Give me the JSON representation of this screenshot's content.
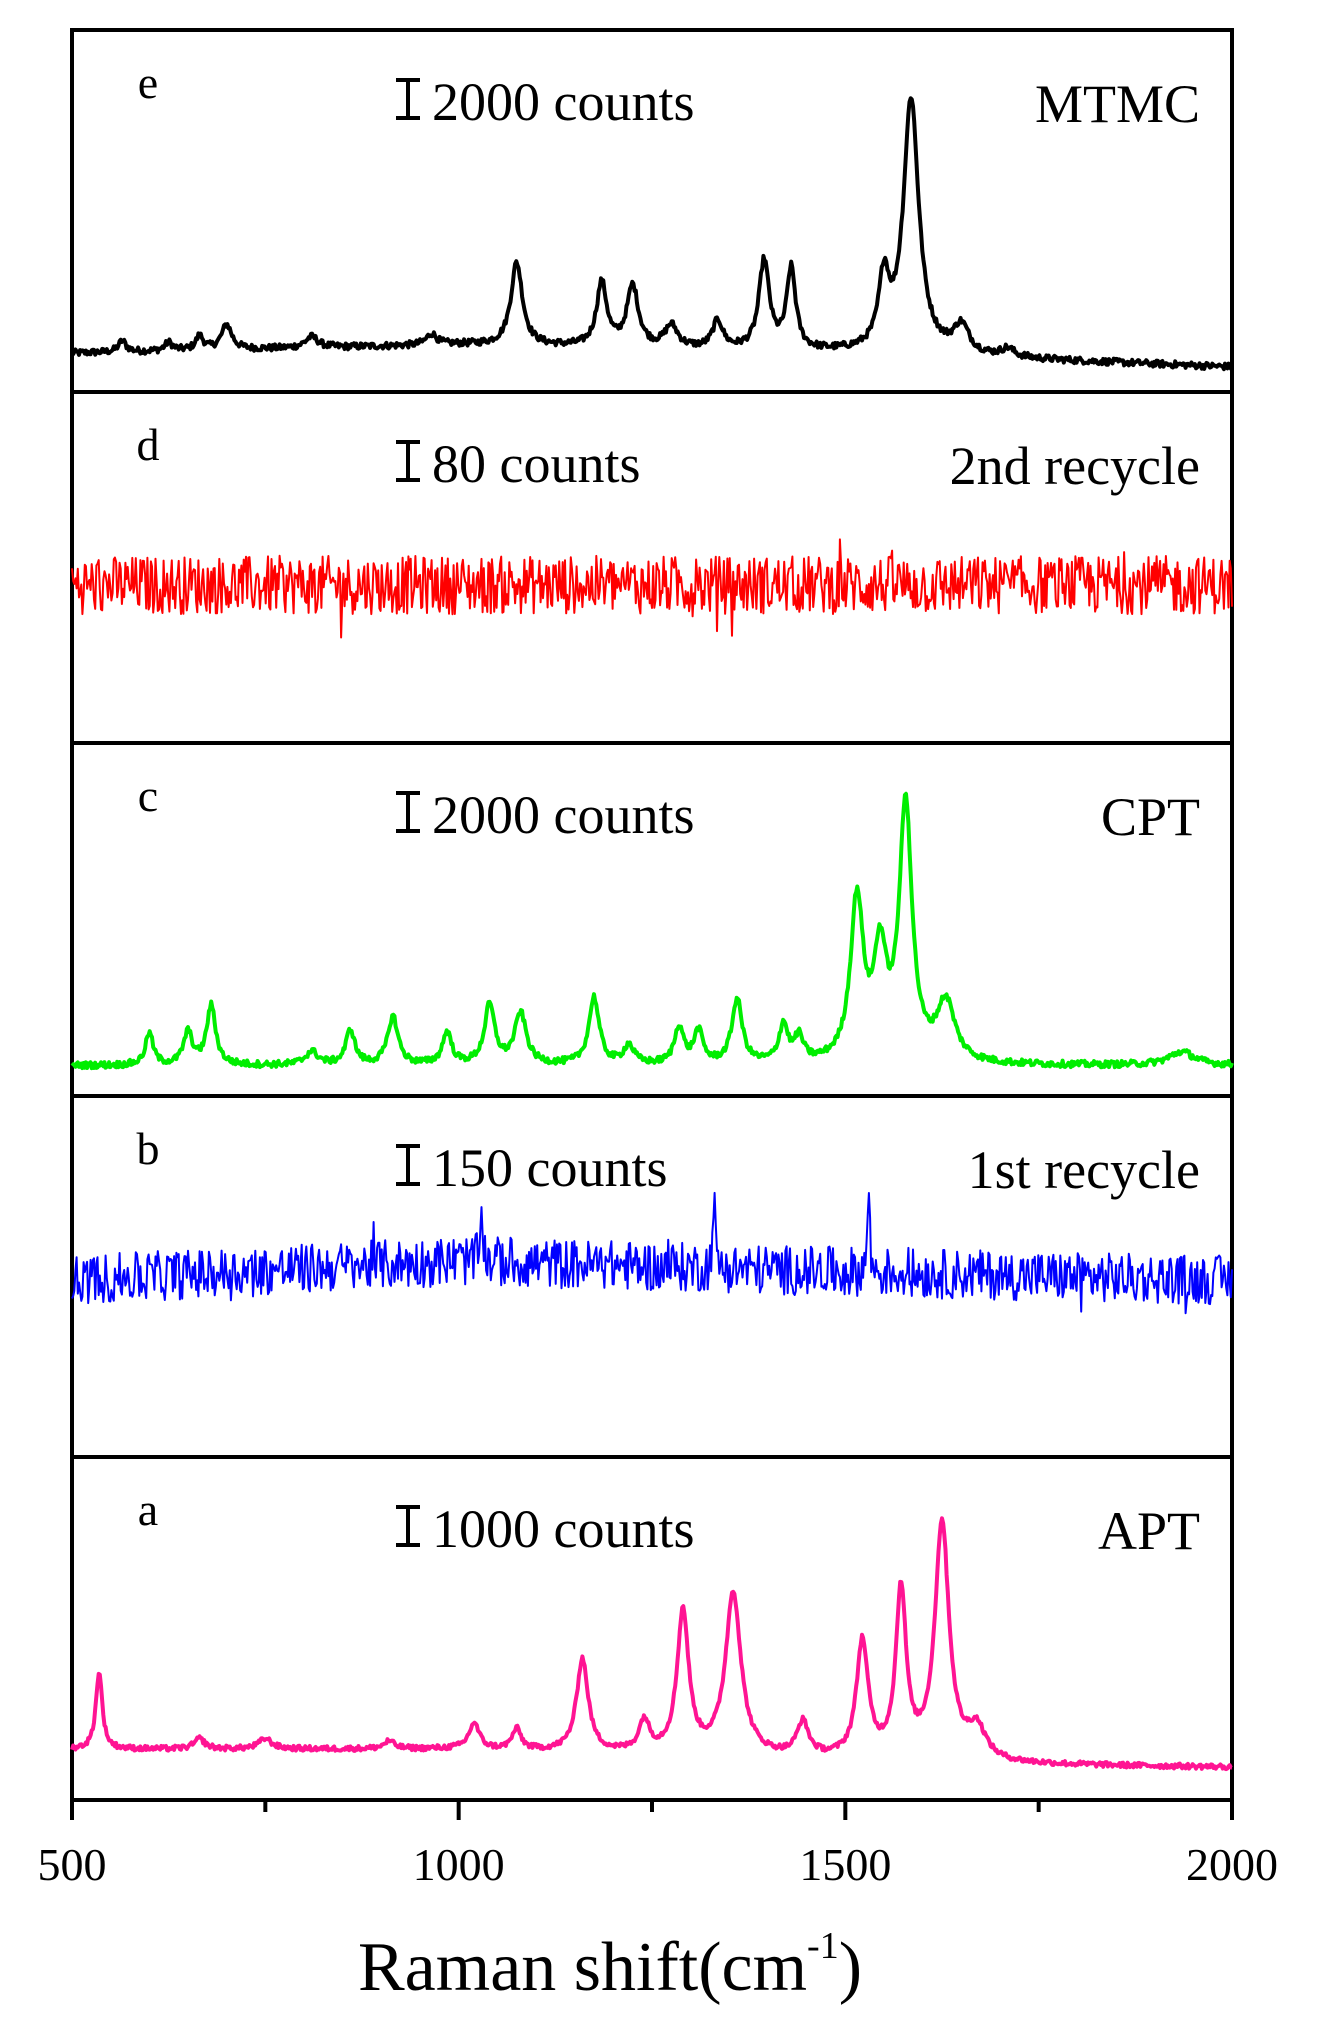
{
  "chart_data": {
    "type": "line",
    "stacked_panels": true,
    "xlabel": "Raman shift(cm",
    "xlabel_sup": "-1",
    "xlabel_tail": ")",
    "xlim": [
      500,
      2000
    ],
    "xticks": [
      "500",
      "1000",
      "1500",
      "2000"
    ],
    "y_axis_shown": false,
    "panels": [
      {
        "letter": "e",
        "name": "MTMC",
        "scale_label": "2000 counts",
        "color": "#000000",
        "noise": 0.012,
        "baseline": [
          [
            500,
            0.05
          ],
          [
            1000,
            0.08
          ],
          [
            1500,
            0.05
          ],
          [
            2000,
            0.0
          ]
        ],
        "peaks": [
          [
            565,
            0.04,
            6
          ],
          [
            625,
            0.03,
            6
          ],
          [
            665,
            0.05,
            6
          ],
          [
            700,
            0.09,
            8
          ],
          [
            810,
            0.04,
            10
          ],
          [
            965,
            0.04,
            8
          ],
          [
            1075,
            0.3,
            9
          ],
          [
            1185,
            0.23,
            8
          ],
          [
            1225,
            0.22,
            9
          ],
          [
            1275,
            0.08,
            10
          ],
          [
            1335,
            0.1,
            8
          ],
          [
            1395,
            0.32,
            8
          ],
          [
            1430,
            0.29,
            7
          ],
          [
            1550,
            0.25,
            8
          ],
          [
            1585,
            0.92,
            12
          ],
          [
            1650,
            0.1,
            12
          ],
          [
            1710,
            0.03,
            10
          ]
        ]
      },
      {
        "letter": "d",
        "name": "2nd recycle",
        "scale_label": "80 counts",
        "color": "#ff0000",
        "noise": 0.11,
        "baseline": [
          [
            500,
            0.5
          ],
          [
            2000,
            0.5
          ]
        ],
        "peaks": []
      },
      {
        "letter": "c",
        "name": "CPT",
        "scale_label": "2000 counts",
        "color": "#00ee00",
        "noise": 0.012,
        "baseline": [
          [
            500,
            0.02
          ],
          [
            2000,
            0.02
          ]
        ],
        "peaks": [
          [
            600,
            0.12,
            6
          ],
          [
            650,
            0.12,
            7
          ],
          [
            680,
            0.22,
            7
          ],
          [
            810,
            0.05,
            10
          ],
          [
            860,
            0.13,
            7
          ],
          [
            915,
            0.18,
            8
          ],
          [
            985,
            0.12,
            7
          ],
          [
            1040,
            0.22,
            8
          ],
          [
            1080,
            0.19,
            9
          ],
          [
            1175,
            0.25,
            8
          ],
          [
            1220,
            0.07,
            8
          ],
          [
            1285,
            0.14,
            7
          ],
          [
            1310,
            0.12,
            7
          ],
          [
            1360,
            0.24,
            8
          ],
          [
            1420,
            0.14,
            7
          ],
          [
            1440,
            0.09,
            7
          ],
          [
            1515,
            0.6,
            10
          ],
          [
            1545,
            0.38,
            10
          ],
          [
            1578,
            0.95,
            10
          ],
          [
            1630,
            0.22,
            14
          ],
          [
            1935,
            0.05,
            20
          ]
        ]
      },
      {
        "letter": "b",
        "name": "1st recycle",
        "scale_label": "150 counts",
        "color": "#0000ff",
        "noise": 0.09,
        "baseline": [
          [
            500,
            0.55
          ],
          [
            1000,
            0.62
          ],
          [
            1500,
            0.58
          ],
          [
            2000,
            0.55
          ]
        ],
        "peaks": [
          [
            1030,
            0.25,
            1.5
          ],
          [
            1330,
            0.3,
            1.5
          ],
          [
            1530,
            0.35,
            1.5
          ]
        ]
      },
      {
        "letter": "a",
        "name": "APT",
        "scale_label": "1000 counts",
        "color": "#ff1493",
        "noise": 0.01,
        "baseline": [
          [
            500,
            0.1
          ],
          [
            1000,
            0.1
          ],
          [
            1700,
            0.04
          ],
          [
            2000,
            0.03
          ]
        ],
        "peaks": [
          [
            535,
            0.3,
            5
          ],
          [
            665,
            0.04,
            8
          ],
          [
            750,
            0.04,
            10
          ],
          [
            910,
            0.03,
            8
          ],
          [
            1020,
            0.1,
            8
          ],
          [
            1075,
            0.08,
            7
          ],
          [
            1160,
            0.36,
            9
          ],
          [
            1240,
            0.12,
            8
          ],
          [
            1290,
            0.55,
            9
          ],
          [
            1355,
            0.63,
            12
          ],
          [
            1445,
            0.13,
            9
          ],
          [
            1522,
            0.45,
            9
          ],
          [
            1572,
            0.65,
            8
          ],
          [
            1625,
            0.92,
            11
          ],
          [
            1670,
            0.12,
            14
          ]
        ]
      }
    ]
  }
}
